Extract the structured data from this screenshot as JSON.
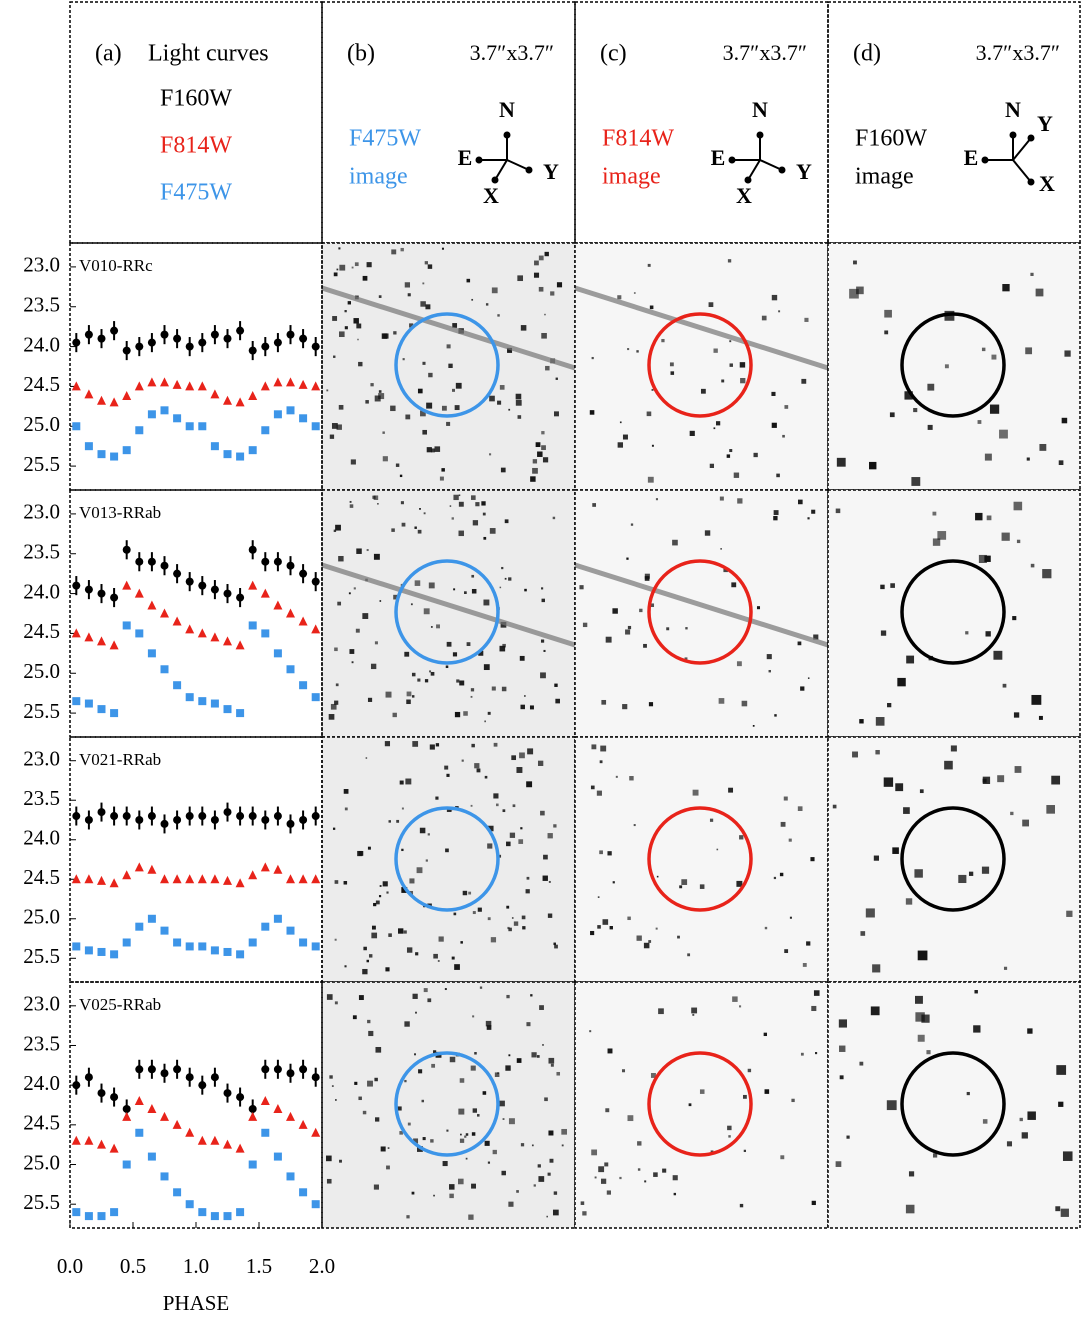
{
  "legend_panel": {
    "label": "(a)",
    "title": "Light curves",
    "filters": [
      {
        "name": "F160W",
        "color": "#000000"
      },
      {
        "name": "F814W",
        "color": "#e8231a"
      },
      {
        "name": "F475W",
        "color": "#3d95e8"
      }
    ]
  },
  "image_panels": [
    {
      "label": "(b)",
      "scale": "3.7″x3.7″",
      "filter": "F475W",
      "caption": "image",
      "color": "#3d95e8",
      "compass": {
        "n": "N",
        "e": "E",
        "x": "X",
        "y": "Y"
      }
    },
    {
      "label": "(c)",
      "scale": "3.7″x3.7″",
      "filter": "F814W",
      "caption": "image",
      "color": "#e8231a",
      "compass": {
        "n": "N",
        "e": "E",
        "x": "X",
        "y": "Y"
      }
    },
    {
      "label": "(d)",
      "scale": "3.7″x3.7″",
      "filter": "F160W",
      "caption": "image",
      "color": "#000000",
      "compass": {
        "n": "N",
        "e": "E",
        "x": "X",
        "y": "Y"
      }
    }
  ],
  "chart_data": [
    {
      "type": "scatter",
      "title": "V010-RRc",
      "x": [
        0.05,
        0.15,
        0.25,
        0.35,
        0.45,
        0.55,
        0.65,
        0.75,
        0.85,
        0.95,
        1.05,
        1.15,
        1.25,
        1.35,
        1.45,
        1.55,
        1.65,
        1.75,
        1.85,
        1.95
      ],
      "series": [
        {
          "color": "#000000",
          "marker": "circle",
          "yerr": 0.12,
          "values": [
            23.95,
            23.85,
            23.9,
            23.8,
            24.05,
            24.0,
            23.95,
            23.85,
            23.9,
            24.0,
            23.95,
            23.85,
            23.9,
            23.8,
            24.05,
            24.0,
            23.95,
            23.85,
            23.9,
            24.0
          ]
        },
        {
          "color": "#e8231a",
          "marker": "triangle",
          "values": [
            24.5,
            24.6,
            24.68,
            24.7,
            24.62,
            24.5,
            24.45,
            24.45,
            24.48,
            24.5,
            24.5,
            24.6,
            24.68,
            24.7,
            24.62,
            24.5,
            24.45,
            24.45,
            24.48,
            24.5
          ]
        },
        {
          "color": "#3d95e8",
          "marker": "square",
          "values": [
            25.0,
            25.25,
            25.35,
            25.38,
            25.3,
            25.05,
            24.85,
            24.8,
            24.9,
            25.0,
            25.0,
            25.25,
            25.35,
            25.38,
            25.3,
            25.05,
            24.85,
            24.8,
            24.9,
            25.0
          ]
        }
      ],
      "xlim": [
        0,
        2
      ],
      "ylim": [
        22.7,
        25.8
      ],
      "invert_y": true,
      "yticks": [
        {
          "value": 23.0,
          "label": "23.0"
        },
        {
          "value": 23.5,
          "label": "23.5"
        },
        {
          "value": 24.0,
          "label": "24.0"
        },
        {
          "value": 24.5,
          "label": "24.5"
        },
        {
          "value": 25.0,
          "label": "25.0"
        },
        {
          "value": 25.5,
          "label": "25.5"
        }
      ]
    },
    {
      "type": "scatter",
      "title": "V013-RRab",
      "x": [
        0.05,
        0.15,
        0.25,
        0.35,
        0.45,
        0.55,
        0.65,
        0.75,
        0.85,
        0.95,
        1.05,
        1.15,
        1.25,
        1.35,
        1.45,
        1.55,
        1.65,
        1.75,
        1.85,
        1.95
      ],
      "series": [
        {
          "color": "#000000",
          "marker": "circle",
          "yerr": 0.12,
          "values": [
            23.9,
            23.95,
            24.0,
            24.05,
            23.45,
            23.6,
            23.6,
            23.65,
            23.75,
            23.85,
            23.9,
            23.95,
            24.0,
            24.05,
            23.45,
            23.6,
            23.6,
            23.65,
            23.75,
            23.85
          ]
        },
        {
          "color": "#e8231a",
          "marker": "triangle",
          "values": [
            24.5,
            24.55,
            24.6,
            24.65,
            23.9,
            24.0,
            24.15,
            24.25,
            24.35,
            24.45,
            24.5,
            24.55,
            24.6,
            24.65,
            23.9,
            24.0,
            24.15,
            24.25,
            24.35,
            24.45
          ]
        },
        {
          "color": "#3d95e8",
          "marker": "square",
          "values": [
            25.35,
            25.38,
            25.45,
            25.5,
            24.4,
            24.5,
            24.75,
            24.95,
            25.15,
            25.3,
            25.35,
            25.38,
            25.45,
            25.5,
            24.4,
            24.5,
            24.75,
            24.95,
            25.15,
            25.3
          ]
        }
      ],
      "xlim": [
        0,
        2
      ],
      "ylim": [
        22.7,
        25.8
      ],
      "invert_y": true,
      "yticks": [
        {
          "value": 23.0,
          "label": "23.0"
        },
        {
          "value": 23.5,
          "label": "23.5"
        },
        {
          "value": 24.0,
          "label": "24.0"
        },
        {
          "value": 24.5,
          "label": "24.5"
        },
        {
          "value": 25.0,
          "label": "25.0"
        },
        {
          "value": 25.5,
          "label": "25.5"
        }
      ]
    },
    {
      "type": "scatter",
      "title": "V021-RRab",
      "x": [
        0.05,
        0.15,
        0.25,
        0.35,
        0.45,
        0.55,
        0.65,
        0.75,
        0.85,
        0.95,
        1.05,
        1.15,
        1.25,
        1.35,
        1.45,
        1.55,
        1.65,
        1.75,
        1.85,
        1.95
      ],
      "series": [
        {
          "color": "#000000",
          "marker": "circle",
          "yerr": 0.12,
          "values": [
            23.7,
            23.75,
            23.65,
            23.7,
            23.7,
            23.75,
            23.7,
            23.8,
            23.75,
            23.7,
            23.7,
            23.75,
            23.65,
            23.7,
            23.7,
            23.75,
            23.7,
            23.8,
            23.75,
            23.7
          ]
        },
        {
          "color": "#e8231a",
          "marker": "triangle",
          "values": [
            24.5,
            24.5,
            24.52,
            24.55,
            24.45,
            24.35,
            24.38,
            24.5,
            24.5,
            24.5,
            24.5,
            24.5,
            24.52,
            24.55,
            24.45,
            24.35,
            24.38,
            24.5,
            24.5,
            24.5
          ]
        },
        {
          "color": "#3d95e8",
          "marker": "square",
          "values": [
            25.35,
            25.4,
            25.42,
            25.45,
            25.3,
            25.1,
            25.0,
            25.15,
            25.3,
            25.35,
            25.35,
            25.4,
            25.42,
            25.45,
            25.3,
            25.1,
            25.0,
            25.15,
            25.3,
            25.35
          ]
        }
      ],
      "xlim": [
        0,
        2
      ],
      "ylim": [
        22.7,
        25.8
      ],
      "invert_y": true,
      "yticks": [
        {
          "value": 23.0,
          "label": "23.0"
        },
        {
          "value": 23.5,
          "label": "23.5"
        },
        {
          "value": 24.0,
          "label": "24.0"
        },
        {
          "value": 24.5,
          "label": "24.5"
        },
        {
          "value": 25.0,
          "label": "25.0"
        },
        {
          "value": 25.5,
          "label": "25.5"
        }
      ]
    },
    {
      "type": "scatter",
      "title": "V025-RRab",
      "xlabel": "PHASE",
      "x": [
        0.05,
        0.15,
        0.25,
        0.35,
        0.45,
        0.55,
        0.65,
        0.75,
        0.85,
        0.95,
        1.05,
        1.15,
        1.25,
        1.35,
        1.45,
        1.55,
        1.65,
        1.75,
        1.85,
        1.95
      ],
      "series": [
        {
          "color": "#000000",
          "marker": "circle",
          "yerr": 0.12,
          "values": [
            24.0,
            23.9,
            24.1,
            24.15,
            24.3,
            23.8,
            23.8,
            23.85,
            23.8,
            23.9,
            24.0,
            23.9,
            24.1,
            24.15,
            24.3,
            23.8,
            23.8,
            23.85,
            23.8,
            23.9
          ]
        },
        {
          "color": "#e8231a",
          "marker": "triangle",
          "values": [
            24.7,
            24.7,
            24.75,
            24.8,
            24.4,
            24.2,
            24.3,
            24.4,
            24.5,
            24.6,
            24.7,
            24.7,
            24.75,
            24.8,
            24.4,
            24.2,
            24.3,
            24.4,
            24.5,
            24.6
          ]
        },
        {
          "color": "#3d95e8",
          "marker": "square",
          "values": [
            25.6,
            25.65,
            25.65,
            25.6,
            25.0,
            24.6,
            24.9,
            25.15,
            25.35,
            25.5,
            25.6,
            25.65,
            25.65,
            25.6,
            25.0,
            24.6,
            24.9,
            25.15,
            25.35,
            25.5
          ]
        }
      ],
      "xlim": [
        0,
        2
      ],
      "ylim": [
        22.7,
        25.8
      ],
      "invert_y": true,
      "xticks": [
        {
          "value": 0,
          "label": "0.0"
        },
        {
          "value": 0.5,
          "label": "0.5"
        },
        {
          "value": 1,
          "label": "1.0"
        },
        {
          "value": 1.5,
          "label": "1.5"
        },
        {
          "value": 2,
          "label": "2.0"
        }
      ],
      "yticks": [
        {
          "value": 23.0,
          "label": "23.0"
        },
        {
          "value": 23.5,
          "label": "23.5"
        },
        {
          "value": 24.0,
          "label": "24.0"
        },
        {
          "value": 24.5,
          "label": "24.5"
        },
        {
          "value": 25.0,
          "label": "25.0"
        },
        {
          "value": 25.5,
          "label": "25.5"
        }
      ]
    }
  ]
}
